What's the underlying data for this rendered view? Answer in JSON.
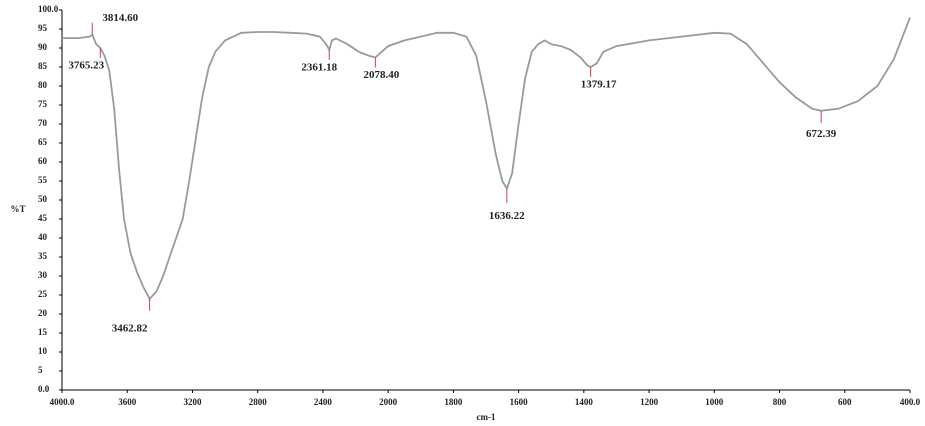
{
  "chart_data": {
    "type": "line",
    "x_label": "cm-1",
    "y_label": "%T",
    "xlim": [
      4000,
      400
    ],
    "ylim": [
      0,
      100
    ],
    "xticks": [
      {
        "value": 4000,
        "label": "4000.0"
      },
      3600,
      3200,
      2800,
      2400,
      2000,
      1800,
      1600,
      1400,
      1200,
      1000,
      800,
      600,
      {
        "value": 400,
        "label": "400.0"
      }
    ],
    "yticks": [
      {
        "value": 0,
        "label": "0.0"
      },
      5,
      10,
      15,
      20,
      25,
      30,
      35,
      40,
      45,
      50,
      55,
      60,
      65,
      70,
      75,
      80,
      85,
      90,
      95,
      {
        "value": 100,
        "label": "100.0"
      }
    ],
    "series": [
      {
        "color": "#9a9a9a",
        "x": [
          4000,
          3900,
          3830,
          3814,
          3790,
          3765,
          3740,
          3710,
          3680,
          3650,
          3620,
          3580,
          3540,
          3500,
          3462,
          3420,
          3380,
          3340,
          3300,
          3260,
          3220,
          3180,
          3140,
          3100,
          3060,
          3000,
          2900,
          2800,
          2700,
          2600,
          2500,
          2420,
          2380,
          2361,
          2345,
          2320,
          2250,
          2180,
          2120,
          2078,
          2040,
          2000,
          1950,
          1900,
          1850,
          1800,
          1760,
          1730,
          1700,
          1670,
          1650,
          1636,
          1620,
          1600,
          1580,
          1560,
          1540,
          1520,
          1500,
          1470,
          1440,
          1410,
          1390,
          1379,
          1360,
          1340,
          1300,
          1200,
          1100,
          1000,
          950,
          900,
          850,
          800,
          750,
          700,
          672,
          620,
          560,
          500,
          450,
          400
        ],
        "values": [
          92.6,
          92.6,
          93,
          93.5,
          91,
          90,
          88,
          84,
          74,
          58,
          45,
          36,
          31,
          27,
          24,
          26,
          30,
          35,
          40,
          45,
          55,
          66,
          77,
          85,
          89,
          92,
          94,
          94.2,
          94.2,
          94,
          93.8,
          93,
          91,
          89.5,
          92,
          92.5,
          91,
          89,
          88,
          87.5,
          89,
          90.5,
          92,
          93,
          94,
          94,
          93,
          88,
          76,
          62,
          55,
          53,
          57,
          70,
          82,
          89,
          91,
          92,
          91,
          90.5,
          89.5,
          87.5,
          85.5,
          85,
          86,
          89,
          90.5,
          92,
          93,
          94,
          93.8,
          91,
          86,
          81,
          77,
          74,
          73.5,
          74,
          76,
          80,
          87,
          98
        ]
      }
    ],
    "annotations": [
      {
        "label": "3814.60",
        "x": 3814.6,
        "y": 93.5
      },
      {
        "label": "3765.23",
        "x": 3765.23,
        "y": 90
      },
      {
        "label": "3462.82",
        "x": 3462.82,
        "y": 24
      },
      {
        "label": "2361.18",
        "x": 2361.18,
        "y": 89.5
      },
      {
        "label": "2078.40",
        "x": 2078.4,
        "y": 87.5
      },
      {
        "label": "1636.22",
        "x": 1636.22,
        "y": 53
      },
      {
        "label": "1379.17",
        "x": 1379.17,
        "y": 85
      },
      {
        "label": "672.39",
        "x": 672.39,
        "y": 73.5
      }
    ]
  }
}
